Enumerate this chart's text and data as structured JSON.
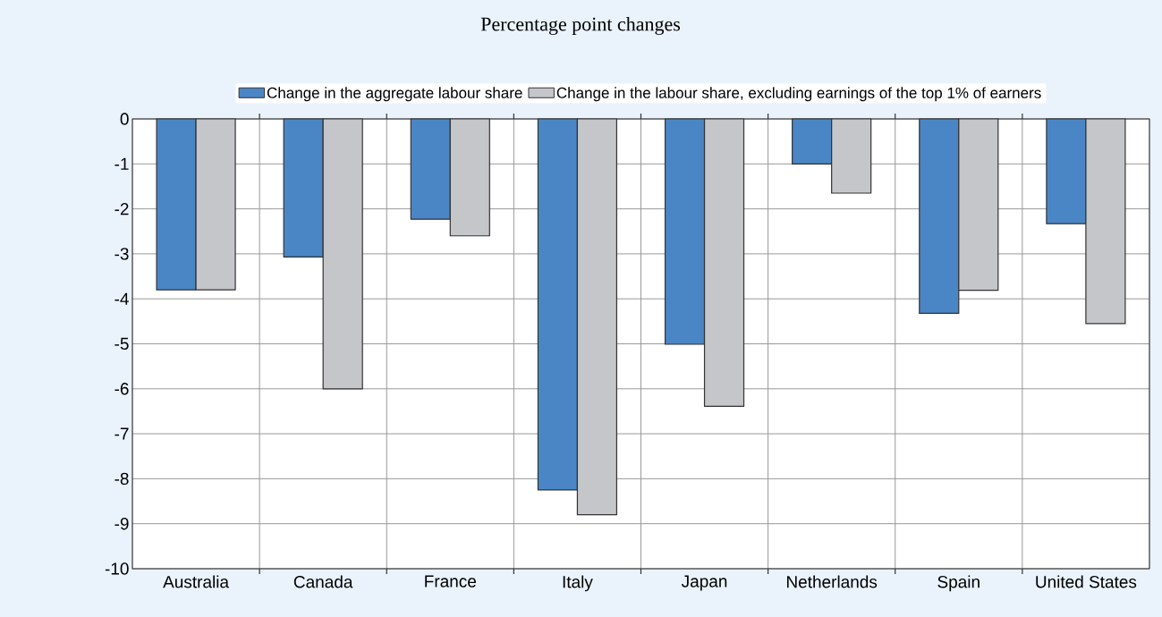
{
  "chart_data": {
    "type": "bar",
    "title": "Percentage point changes",
    "categories": [
      "Australia",
      "Canada",
      "France",
      "Italy",
      "Japan",
      "Netherlands",
      "Spain",
      "United States"
    ],
    "series": [
      {
        "name": "Change in the aggregate labour share",
        "color": "#4a86c5",
        "values": [
          -3.8,
          -3.07,
          -2.23,
          -8.25,
          -5.01,
          -1.0,
          -4.32,
          -2.33
        ]
      },
      {
        "name": "Change in the labour share, excluding earnings of the top 1% of earners",
        "color": "#c4c6c9",
        "values": [
          -3.8,
          -6.0,
          -2.6,
          -8.8,
          -6.39,
          -1.65,
          -3.81,
          -4.55
        ]
      }
    ],
    "ylim": [
      -10,
      0
    ],
    "yticks": [
      -10,
      -9,
      -8,
      -7,
      -6,
      -5,
      -4,
      -3,
      -2,
      -1,
      0
    ],
    "grid": true,
    "legend": "top"
  }
}
